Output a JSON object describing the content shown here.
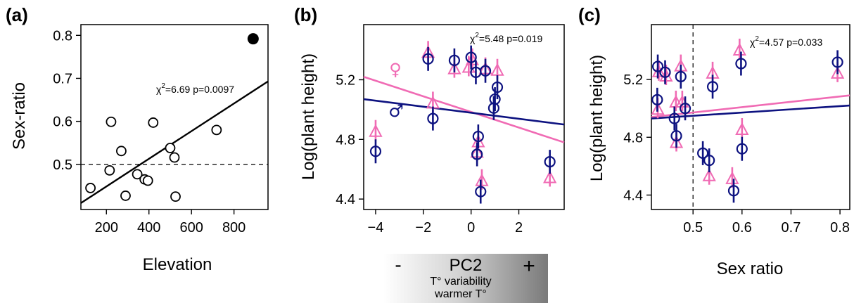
{
  "colors": {
    "female": "#f06bb4",
    "male": "#0d1280",
    "black": "#000000"
  },
  "chart_data": [
    {
      "panel_label": "(a)",
      "type": "scatter",
      "xlabel": "Elevation",
      "ylabel": "Sex-ratio",
      "xlim": [
        80,
        960
      ],
      "ylim": [
        0.395,
        0.825
      ],
      "xticks": [
        200,
        400,
        600,
        800
      ],
      "yticks": [
        0.5,
        0.6,
        0.7,
        0.8
      ],
      "annotation": "χ²=6.69 p=0.0097",
      "reference_line_y": 0.5,
      "fit_line": {
        "x": [
          80,
          960
        ],
        "y": [
          0.41,
          0.693
        ]
      },
      "points": [
        {
          "x": 125,
          "y": 0.445
        },
        {
          "x": 215,
          "y": 0.486
        },
        {
          "x": 222,
          "y": 0.599
        },
        {
          "x": 270,
          "y": 0.531
        },
        {
          "x": 290,
          "y": 0.427
        },
        {
          "x": 345,
          "y": 0.477
        },
        {
          "x": 380,
          "y": 0.465
        },
        {
          "x": 395,
          "y": 0.462
        },
        {
          "x": 420,
          "y": 0.597
        },
        {
          "x": 500,
          "y": 0.538
        },
        {
          "x": 520,
          "y": 0.516
        },
        {
          "x": 525,
          "y": 0.425
        },
        {
          "x": 718,
          "y": 0.58
        }
      ],
      "highlight_points": [
        {
          "x": 890,
          "y": 0.792
        }
      ]
    },
    {
      "panel_label": "(b)",
      "type": "scatter",
      "xlabel": "PC2",
      "ylabel": "Log(plant height)",
      "xlim": [
        -4.5,
        3.9
      ],
      "ylim": [
        4.33,
        5.57
      ],
      "xticks": [
        -4,
        -2,
        0,
        2
      ],
      "yticks": [
        4.4,
        4.8,
        5.2
      ],
      "annotation": "χ²=5.48 p=0.019",
      "fit_female": {
        "x": [
          -4.5,
          3.9
        ],
        "y": [
          5.22,
          4.78
        ]
      },
      "fit_male": {
        "x": [
          -4.5,
          3.9
        ],
        "y": [
          5.07,
          4.9
        ]
      },
      "male_points": [
        {
          "x": -4.0,
          "y": 4.72
        },
        {
          "x": -1.6,
          "y": 4.94
        },
        {
          "x": -1.8,
          "y": 5.34
        },
        {
          "x": -0.7,
          "y": 5.33
        },
        {
          "x": 0.0,
          "y": 5.35
        },
        {
          "x": 0.2,
          "y": 5.25
        },
        {
          "x": 0.6,
          "y": 5.26
        },
        {
          "x": 1.0,
          "y": 5.07
        },
        {
          "x": 0.95,
          "y": 5.01
        },
        {
          "x": 1.1,
          "y": 5.15
        },
        {
          "x": 0.3,
          "y": 4.82
        },
        {
          "x": 0.25,
          "y": 4.7
        },
        {
          "x": 0.4,
          "y": 4.45
        },
        {
          "x": 3.3,
          "y": 4.65
        }
      ],
      "female_points": [
        {
          "x": -4.0,
          "y": 4.85
        },
        {
          "x": -1.8,
          "y": 5.38
        },
        {
          "x": -1.6,
          "y": 5.04
        },
        {
          "x": -0.7,
          "y": 5.27
        },
        {
          "x": -0.1,
          "y": 5.28
        },
        {
          "x": 0.05,
          "y": 5.33
        },
        {
          "x": 0.6,
          "y": 5.27
        },
        {
          "x": 1.1,
          "y": 5.26
        },
        {
          "x": 0.3,
          "y": 4.78
        },
        {
          "x": 0.25,
          "y": 4.71
        },
        {
          "x": 0.45,
          "y": 4.52
        },
        {
          "x": 3.3,
          "y": 4.54
        }
      ],
      "legend": {
        "female_symbol": "♀",
        "male_symbol": "♂"
      },
      "pc2_bar": {
        "minus": "-",
        "plus": "+",
        "title": "PC2",
        "line1": "T° variability",
        "line2": "warmer T°"
      }
    },
    {
      "panel_label": "(c)",
      "type": "scatter",
      "xlabel": "Sex ratio",
      "ylabel": "Log(plant height)",
      "xlim": [
        0.415,
        0.82
      ],
      "ylim": [
        4.3,
        5.58
      ],
      "xticks": [
        0.5,
        0.6,
        0.7,
        0.8
      ],
      "yticks": [
        4.4,
        4.8,
        5.2
      ],
      "annotation": "χ²=4.57 p=0.033",
      "reference_line_x": 0.5,
      "fit_female": {
        "x": [
          0.415,
          0.82
        ],
        "y": [
          4.94,
          5.09
        ]
      },
      "fit_male": {
        "x": [
          0.415,
          0.82
        ],
        "y": [
          4.93,
          5.02
        ]
      },
      "male_points": [
        {
          "x": 0.428,
          "y": 5.29
        },
        {
          "x": 0.443,
          "y": 5.25
        },
        {
          "x": 0.475,
          "y": 5.22
        },
        {
          "x": 0.427,
          "y": 5.06
        },
        {
          "x": 0.462,
          "y": 4.93
        },
        {
          "x": 0.466,
          "y": 4.81
        },
        {
          "x": 0.484,
          "y": 5.0
        },
        {
          "x": 0.54,
          "y": 5.15
        },
        {
          "x": 0.52,
          "y": 4.69
        },
        {
          "x": 0.533,
          "y": 4.64
        },
        {
          "x": 0.598,
          "y": 5.31
        },
        {
          "x": 0.6,
          "y": 4.72
        },
        {
          "x": 0.583,
          "y": 4.43
        },
        {
          "x": 0.795,
          "y": 5.32
        }
      ],
      "female_points": [
        {
          "x": 0.43,
          "y": 5.25
        },
        {
          "x": 0.445,
          "y": 5.22
        },
        {
          "x": 0.475,
          "y": 5.29
        },
        {
          "x": 0.428,
          "y": 4.99
        },
        {
          "x": 0.465,
          "y": 5.04
        },
        {
          "x": 0.478,
          "y": 5.04
        },
        {
          "x": 0.466,
          "y": 4.76
        },
        {
          "x": 0.54,
          "y": 5.24
        },
        {
          "x": 0.595,
          "y": 5.4
        },
        {
          "x": 0.6,
          "y": 4.85
        },
        {
          "x": 0.533,
          "y": 4.53
        },
        {
          "x": 0.58,
          "y": 4.51
        },
        {
          "x": 0.795,
          "y": 5.24
        }
      ]
    }
  ]
}
